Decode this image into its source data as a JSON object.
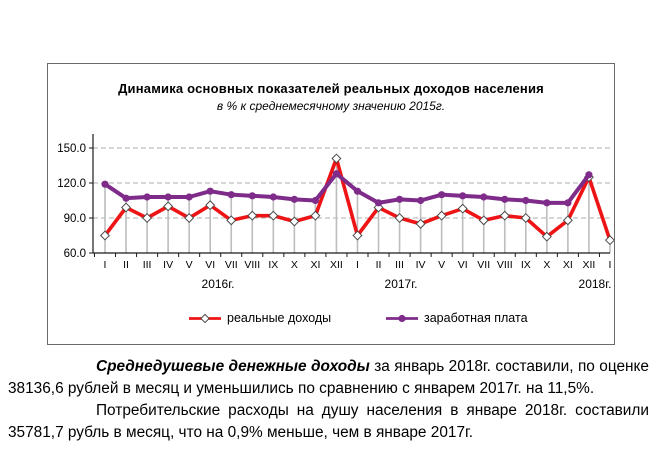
{
  "chart_data": {
    "type": "line",
    "title": "Динамика основных показателей реальных доходов населения",
    "subtitle": "в % к среднемесячному значению 2015г.",
    "categories": [
      "I",
      "II",
      "III",
      "IV",
      "V",
      "VI",
      "VII",
      "VIII",
      "IX",
      "X",
      "XI",
      "XII",
      "I",
      "II",
      "III",
      "IV",
      "V",
      "VI",
      "VII",
      "VIII",
      "IX",
      "X",
      "XI",
      "XII",
      "I"
    ],
    "year_labels": [
      "2016г.",
      "2017г.",
      "2018г."
    ],
    "series": [
      {
        "name": "реальные доходы",
        "color": "#ee1415",
        "marker": "diamond",
        "values": [
          75,
          99,
          90,
          100,
          90,
          101,
          88,
          92,
          92,
          87,
          92,
          141,
          75,
          99,
          90,
          85,
          92,
          98,
          88,
          92,
          90,
          74,
          88,
          125,
          71
        ]
      },
      {
        "name": "заработная плата",
        "color": "#7e2b8a",
        "marker": "circle",
        "values": [
          119,
          107,
          108,
          108,
          108,
          113,
          110,
          109,
          108,
          106,
          105,
          128,
          113,
          103,
          106,
          105,
          110,
          109,
          108,
          106,
          105,
          103,
          103,
          127,
          null
        ]
      }
    ],
    "ylim": [
      60,
      157
    ],
    "yticks": [
      60,
      90,
      120,
      150
    ],
    "ytick_labels": [
      "60.0",
      "90.0",
      "120.0",
      "150.0"
    ],
    "grid": "horizontal-dashed",
    "drop_lines": true,
    "legend_position": "bottom",
    "colors": {
      "gridline": "#aeaeae",
      "drop_line": "#bdbdbd",
      "axis": "#1a1a1a",
      "marker_outline": "#4a4a4a"
    }
  },
  "text": {
    "p1_lead": "Среднедушевые денежные доходы",
    "p1_rest": " за январь 2018г. составили, по оценке 38136,6 рублей в месяц и уменьшились по сравнению с январем 2017г. на 11,5%.",
    "p2": "Потребительские расходы на душу населения в январе 2018г. составили 35781,7 рубль в месяц, что на 0,9% меньше, чем в январе 2017г."
  }
}
